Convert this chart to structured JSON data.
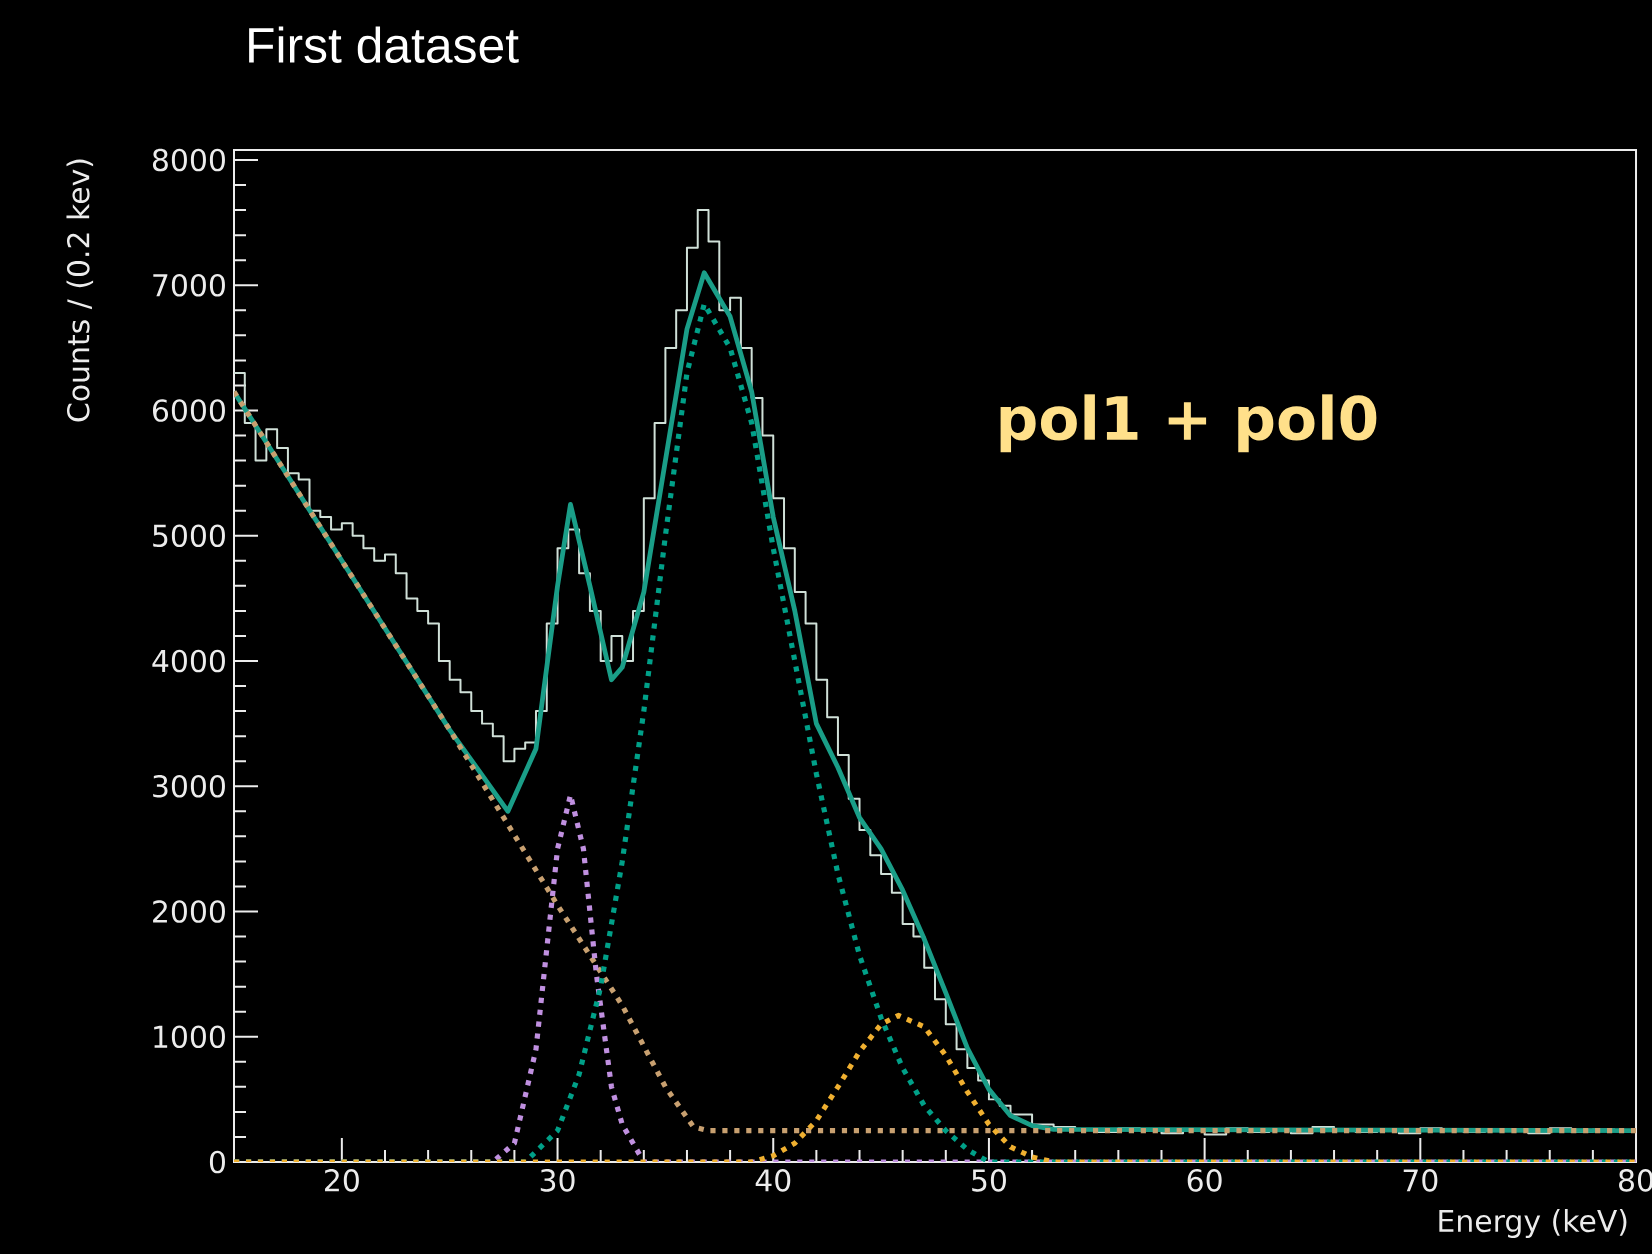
{
  "chart_data": {
    "type": "line",
    "title": "First dataset",
    "xlabel": "Energy (keV)",
    "ylabel": "Counts / (0.2 kev)",
    "annotations": [
      "pol1 + pol0"
    ],
    "xlim": [
      15,
      80
    ],
    "ylim": [
      0,
      8080
    ],
    "xticks": [
      20,
      30,
      40,
      50,
      60,
      70,
      80
    ],
    "yticks": [
      0,
      1000,
      2000,
      3000,
      4000,
      5000,
      6000,
      7000,
      8000
    ],
    "grid": false,
    "marker": "none",
    "series": [
      {
        "type": "step",
        "color": "#d0e0d8",
        "line_style": "solid",
        "x": [
          15,
          15.5,
          16,
          16.5,
          17,
          17.5,
          18,
          18.5,
          19,
          19.5,
          20,
          20.5,
          21,
          21.5,
          22,
          22.5,
          23,
          23.5,
          24,
          24.5,
          25,
          25.5,
          26,
          26.5,
          27,
          27.5,
          28,
          28.5,
          29,
          29.5,
          30,
          30.5,
          31,
          31.5,
          32,
          32.5,
          33,
          33.5,
          34,
          34.5,
          35,
          35.5,
          36,
          36.5,
          37,
          37.5,
          38,
          38.5,
          39,
          39.5,
          40,
          40.5,
          41,
          41.5,
          42,
          42.5,
          43,
          43.5,
          44,
          44.5,
          45,
          45.5,
          46,
          46.5,
          47,
          47.5,
          48,
          48.5,
          49,
          49.5,
          50,
          50.5,
          51,
          52,
          53,
          54,
          55,
          56,
          57,
          58,
          59,
          60,
          61,
          62,
          63,
          64,
          65,
          66,
          67,
          68,
          69,
          70,
          71,
          72,
          73,
          74,
          75,
          76,
          77,
          78,
          79,
          80
        ],
        "values": [
          6300,
          5900,
          5600,
          5850,
          5700,
          5500,
          5450,
          5200,
          5150,
          5050,
          5100,
          5000,
          4900,
          4800,
          4850,
          4700,
          4500,
          4400,
          4300,
          4000,
          3850,
          3750,
          3600,
          3500,
          3400,
          3200,
          3300,
          3350,
          3600,
          4300,
          4900,
          5050,
          4700,
          4400,
          4000,
          4200,
          4000,
          4400,
          5300,
          5900,
          6500,
          6800,
          7300,
          7600,
          7350,
          6800,
          6900,
          6500,
          6100,
          5800,
          5300,
          4900,
          4550,
          4300,
          3850,
          3550,
          3250,
          2900,
          2650,
          2450,
          2300,
          2150,
          1900,
          1800,
          1550,
          1300,
          1100,
          900,
          750,
          650,
          500,
          450,
          380,
          300,
          280,
          260,
          240,
          270,
          250,
          230,
          260,
          220,
          270,
          240,
          260,
          230,
          280,
          250,
          240,
          260,
          230,
          270,
          250,
          240,
          260,
          250,
          230,
          270,
          240,
          260,
          250,
          250
        ]
      },
      {
        "type": "line",
        "color": "#1a9e88",
        "line_style": "solid",
        "x": [
          15,
          20,
          25,
          27.7,
          29,
          30,
          30.6,
          31.5,
          32.5,
          33,
          34,
          35,
          36,
          36.8,
          38,
          39,
          40,
          41,
          42,
          43,
          44,
          45,
          46,
          47,
          48,
          49,
          50,
          51,
          52,
          53,
          80
        ],
        "values": [
          6150,
          4800,
          3450,
          2800,
          3300,
          4600,
          5250,
          4600,
          3850,
          3950,
          4550,
          5600,
          6650,
          7100,
          6750,
          6150,
          5150,
          4400,
          3500,
          3150,
          2750,
          2500,
          2170,
          1780,
          1350,
          910,
          580,
          370,
          290,
          260,
          250
        ]
      },
      {
        "type": "line",
        "color": "#c8a070",
        "line_style": "dotted",
        "x": [
          15,
          20,
          25,
          30,
          33,
          35,
          36.3,
          37,
          80
        ],
        "values": [
          6150,
          4800,
          3450,
          2050,
          1250,
          600,
          280,
          250,
          250
        ]
      },
      {
        "type": "line",
        "color": "#c090e0",
        "line_style": "dotted",
        "x": [
          15,
          27,
          28,
          29,
          29.5,
          30,
          30.6,
          31.2,
          31.8,
          32.5,
          33,
          34,
          80
        ],
        "values": [
          0,
          0,
          150,
          900,
          1700,
          2500,
          2930,
          2500,
          1500,
          600,
          300,
          0,
          0
        ]
      },
      {
        "type": "line",
        "color": "#00a088",
        "line_style": "dotted",
        "x": [
          15,
          28.5,
          30,
          31,
          32,
          33,
          34,
          35,
          36,
          36.8,
          38,
          39,
          40,
          41,
          42,
          43,
          44,
          45,
          46,
          47,
          48,
          49,
          50,
          80
        ],
        "values": [
          0,
          0,
          250,
          700,
          1400,
          2400,
          3600,
          5000,
          6300,
          6850,
          6500,
          5900,
          4900,
          4000,
          3100,
          2300,
          1650,
          1150,
          750,
          450,
          250,
          100,
          0,
          0
        ]
      },
      {
        "type": "line",
        "color": "#f0b030",
        "line_style": "dotted",
        "x": [
          15,
          39,
          40,
          41,
          42,
          43,
          44,
          45,
          45.8,
          47,
          48,
          49,
          50,
          51,
          52,
          53,
          80
        ],
        "values": [
          0,
          0,
          50,
          150,
          330,
          600,
          880,
          1100,
          1170,
          1080,
          850,
          560,
          300,
          120,
          40,
          0,
          0
        ]
      }
    ]
  }
}
